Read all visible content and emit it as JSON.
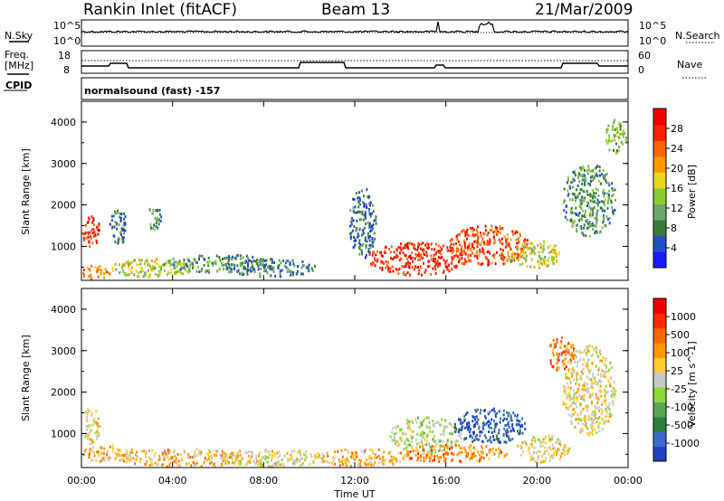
{
  "header": {
    "site": "Rankin Inlet (fitACF)",
    "beam": "Beam 13",
    "date": "21/Mar/2009"
  },
  "top_panels": {
    "nsky_label": "N.Sky",
    "nsearch_label": "N.Search",
    "freq_label": "Freq.",
    "freq_unit": "[MHz]",
    "nave_label": "Nave",
    "cpid_label": "CPID",
    "noise_ticks_left": [
      "10^5",
      "10^0"
    ],
    "noise_ticks_right": [
      "10^5",
      "10^0"
    ],
    "freq_ticks_left": [
      "18",
      "8"
    ],
    "nave_ticks_right": [
      "60",
      "0"
    ],
    "cpid_text": "normalsound (fast) -157"
  },
  "x_axis": {
    "label": "Time UT",
    "ticks": [
      "00:00",
      "04:00",
      "08:00",
      "12:00",
      "16:00",
      "20:00",
      "00:00"
    ]
  },
  "power_colorbar": {
    "label": "Power [dB]",
    "ticks": [
      "28",
      "24",
      "20",
      "16",
      "12",
      "8",
      "4"
    ],
    "colors": [
      "#1a1aff",
      "#2050c8",
      "#3a7a3a",
      "#6aa86a",
      "#8acc30",
      "#e8d820",
      "#ff9900",
      "#ff6600",
      "#ff2000",
      "#ee0000"
    ]
  },
  "velocity_colorbar": {
    "label": "Velocity [m s^-1]",
    "ticks": [
      "1000",
      "500",
      "100",
      "25",
      "-25",
      "-100",
      "-500",
      "-1000"
    ],
    "colors": [
      "#2040c0",
      "#3a6ad0",
      "#2e7f3a",
      "#54a854",
      "#8cd83a",
      "#c8c8c8",
      "#ffcc33",
      "#ff9900",
      "#ff6600",
      "#ff2a00",
      "#ee0000"
    ]
  },
  "chart_data": [
    {
      "type": "heatmap",
      "title": "",
      "xlabel": "Time UT",
      "ylabel": "Slant Range [km]",
      "ylim": [
        180,
        4500
      ],
      "y_ticks": [
        1000,
        2000,
        3000,
        4000
      ],
      "x_ticks": [
        "00:00",
        "04:00",
        "08:00",
        "12:00",
        "16:00",
        "20:00",
        "00:00"
      ],
      "quantity": "Power [dB]",
      "colorbar_ticks": [
        4,
        8,
        12,
        16,
        20,
        24,
        28
      ]
    },
    {
      "type": "heatmap",
      "title": "",
      "xlabel": "Time UT",
      "ylabel": "Slant Range [km]",
      "ylim": [
        180,
        4500
      ],
      "y_ticks": [
        1000,
        2000,
        3000,
        4000
      ],
      "x_ticks": [
        "00:00",
        "04:00",
        "08:00",
        "12:00",
        "16:00",
        "20:00",
        "00:00"
      ],
      "quantity": "Velocity [m s^-1]",
      "colorbar_ticks": [
        -1000,
        -500,
        -100,
        -25,
        25,
        100,
        500,
        1000
      ]
    }
  ]
}
